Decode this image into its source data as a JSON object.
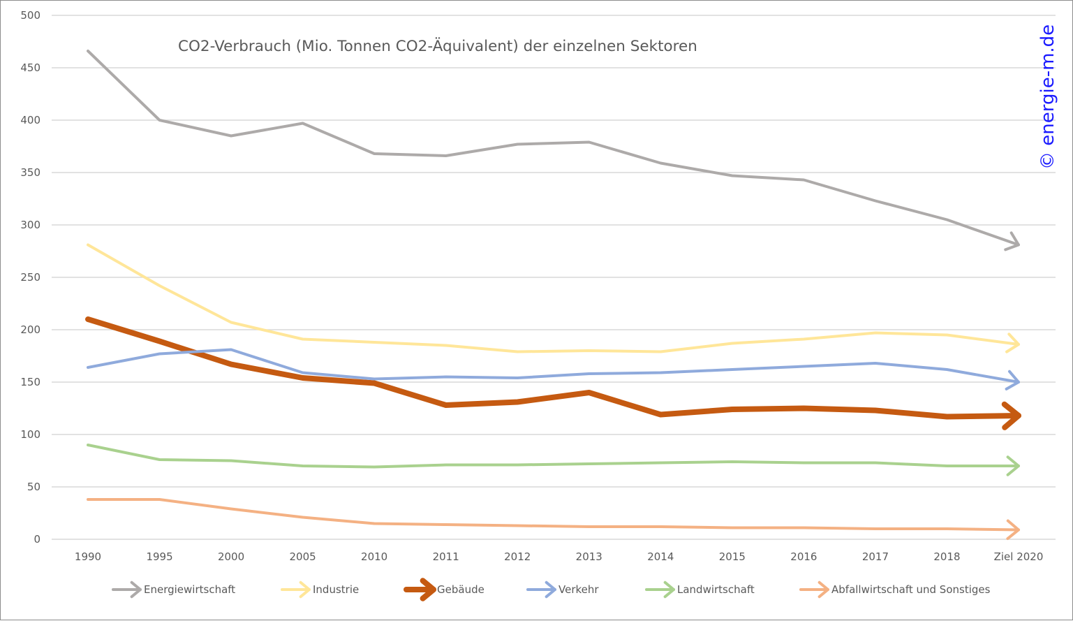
{
  "chart_data": {
    "type": "line",
    "title": "CO2-Verbrauch (Mio. Tonnen CO2-Äquivalent) der einzelnen Sektoren",
    "watermark": "© energie-m.de",
    "xlabel": "",
    "ylabel": "",
    "ylim": [
      0,
      500
    ],
    "yticks": [
      0,
      50,
      100,
      150,
      200,
      250,
      300,
      350,
      400,
      450,
      500
    ],
    "ytick_labels": [
      "0",
      "50",
      "100",
      "150",
      "200",
      "250",
      "300",
      "350",
      "400",
      "450",
      "500"
    ],
    "grid": true,
    "legend_position": "bottom",
    "categories": [
      "1990",
      "1995",
      "2000",
      "2005",
      "2010",
      "2011",
      "2012",
      "2013",
      "2014",
      "2015",
      "2016",
      "2017",
      "2018",
      "Ziel 2020"
    ],
    "series": [
      {
        "name": "Energiewirtschaft",
        "color": "#ADAAA9",
        "emphasis": false,
        "values": [
          466,
          400,
          385,
          397,
          368,
          366,
          377,
          379,
          359,
          347,
          343,
          323,
          305,
          281
        ]
      },
      {
        "name": "Industrie",
        "color": "#FFE699",
        "emphasis": false,
        "values": [
          281,
          242,
          207,
          191,
          188,
          185,
          179,
          180,
          179,
          187,
          191,
          197,
          195,
          186
        ]
      },
      {
        "name": "Gebäude",
        "color": "#C55A11",
        "emphasis": true,
        "values": [
          210,
          189,
          167,
          154,
          149,
          128,
          131,
          140,
          119,
          124,
          125,
          123,
          117,
          118
        ]
      },
      {
        "name": "Verkehr",
        "color": "#8FAADC",
        "emphasis": false,
        "values": [
          164,
          177,
          181,
          159,
          153,
          155,
          154,
          158,
          159,
          162,
          165,
          168,
          162,
          150
        ]
      },
      {
        "name": "Landwirtschaft",
        "color": "#A9D18E",
        "emphasis": false,
        "values": [
          90,
          76,
          75,
          70,
          69,
          71,
          71,
          72,
          73,
          74,
          73,
          73,
          70,
          70
        ]
      },
      {
        "name": "Abfallwirtschaft und Sonstiges",
        "color": "#F4B183",
        "emphasis": false,
        "values": [
          38,
          38,
          29,
          21,
          15,
          14,
          13,
          12,
          12,
          11,
          11,
          10,
          10,
          9
        ]
      }
    ]
  }
}
